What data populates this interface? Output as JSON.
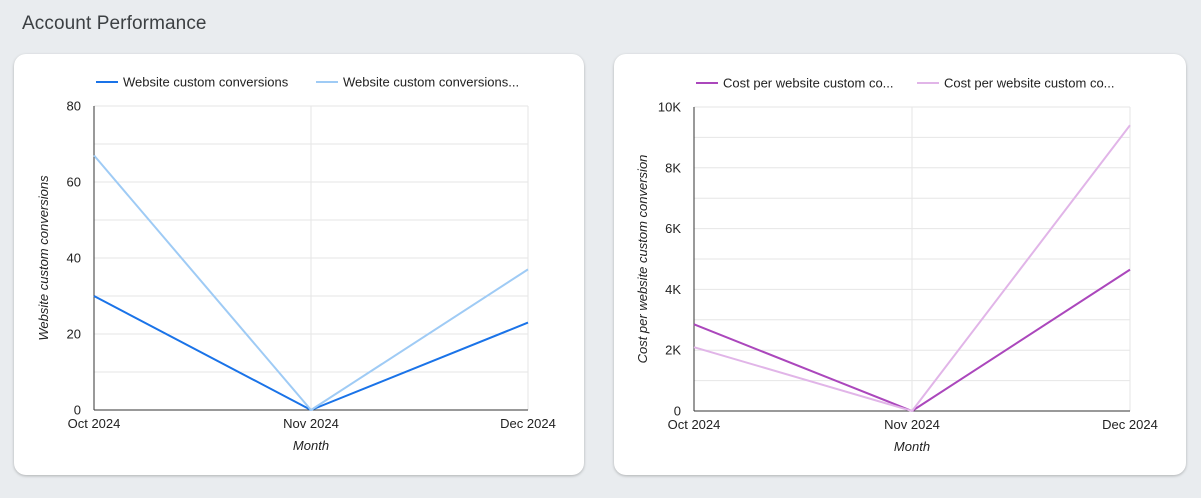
{
  "page": {
    "title": "Account Performance"
  },
  "chart_data": [
    {
      "type": "line",
      "x": [
        "Oct 2024",
        "Nov 2024",
        "Dec 2024"
      ],
      "series": [
        {
          "name": "Website custom conversions",
          "values": [
            30,
            0,
            23
          ],
          "color": "#1a73e8"
        },
        {
          "name": "Website custom conversions...",
          "values": [
            67,
            0,
            37
          ],
          "color": "#9fcbf5"
        }
      ],
      "xlabel": "Month",
      "ylabel": "Website custom conversions",
      "ylim": [
        0,
        80
      ],
      "yticks": [
        0,
        20,
        40,
        60,
        80
      ],
      "ytick_labels": [
        "0",
        "20",
        "40",
        "60",
        "80"
      ],
      "grid": true,
      "legend": "top"
    },
    {
      "type": "line",
      "x": [
        "Oct 2024",
        "Nov 2024",
        "Dec 2024"
      ],
      "series": [
        {
          "name": "Cost per website custom co...",
          "values": [
            2850,
            0,
            4650
          ],
          "color": "#ab47bc"
        },
        {
          "name": "Cost per website custom co...",
          "values": [
            2100,
            0,
            9400
          ],
          "color": "#e1b5e8"
        }
      ],
      "xlabel": "Month",
      "ylabel": "Cost per website custom conversion",
      "ylim": [
        0,
        10000
      ],
      "yticks": [
        0,
        2000,
        4000,
        6000,
        8000,
        10000
      ],
      "ytick_labels": [
        "0",
        "2K",
        "4K",
        "6K",
        "8K",
        "10K"
      ],
      "grid": true,
      "legend": "top"
    }
  ]
}
